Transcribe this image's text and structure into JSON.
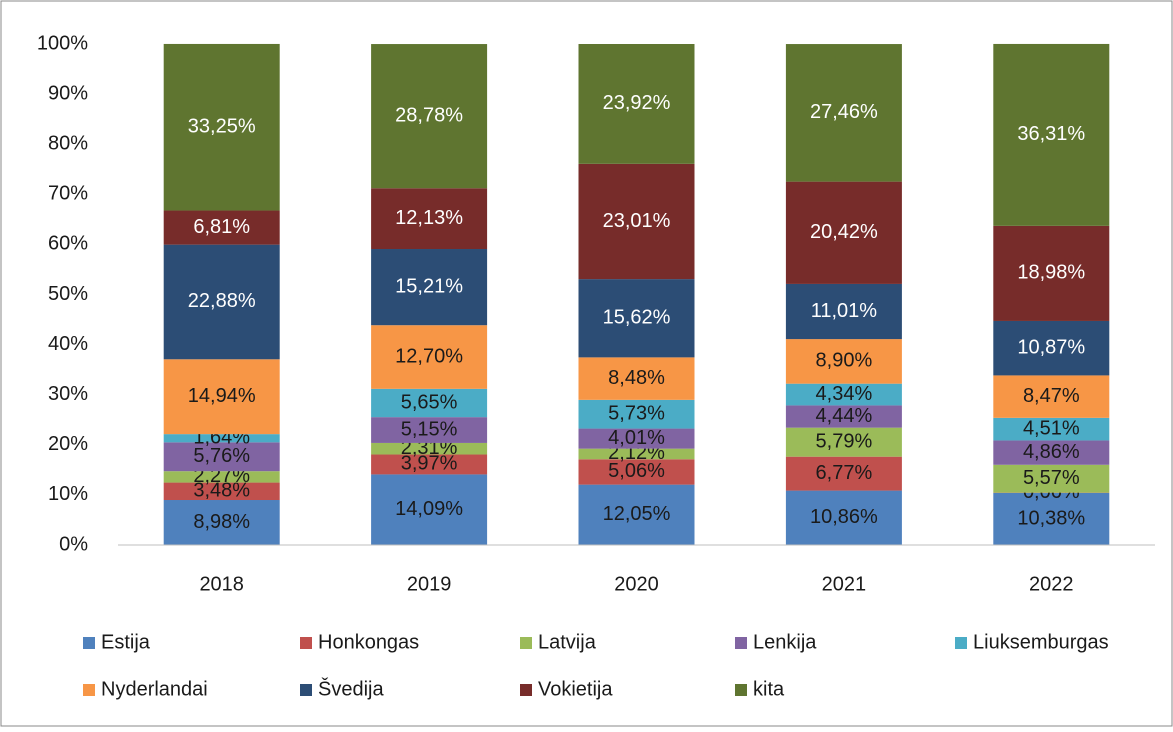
{
  "chart_data": {
    "type": "stacked_bar",
    "categories": [
      "2018",
      "2019",
      "2020",
      "2021",
      "2022"
    ],
    "series": [
      {
        "name": "Estija",
        "color": "#4f81bd",
        "values": [
          8.98,
          14.09,
          12.05,
          10.86,
          10.38
        ],
        "value_labels": [
          "8,98%",
          "14,09%",
          "12,05%",
          "10,86%",
          "10,38%"
        ]
      },
      {
        "name": "Honkongas",
        "color": "#c0504d",
        "values": [
          3.48,
          3.97,
          5.06,
          6.77,
          0.06
        ],
        "value_labels": [
          "3,48%",
          "3,97%",
          "5,06%",
          "6,77%",
          "0,06%"
        ]
      },
      {
        "name": "Latvija",
        "color": "#9bbb59",
        "values": [
          2.27,
          2.31,
          2.12,
          5.79,
          5.57
        ],
        "value_labels": [
          "2,27%",
          "2,31%",
          "2,12%",
          "5,79%",
          "5,57%"
        ]
      },
      {
        "name": "Lenkija",
        "color": "#8064a2",
        "values": [
          5.76,
          5.15,
          4.01,
          4.44,
          4.86
        ],
        "value_labels": [
          "5,76%",
          "5,15%",
          "4,01%",
          "4,44%",
          "4,86%"
        ]
      },
      {
        "name": "Liuksemburgas",
        "color": "#4bacc6",
        "values": [
          1.64,
          5.65,
          5.73,
          4.34,
          4.51
        ],
        "value_labels": [
          "1,64%",
          "5,65%",
          "5,73%",
          "4,34%",
          "4,51%"
        ]
      },
      {
        "name": "Nyderlandai",
        "color": "#f79646",
        "values": [
          14.94,
          12.7,
          8.48,
          8.9,
          8.47
        ],
        "value_labels": [
          "14,94%",
          "12,70%",
          "8,48%",
          "8,90%",
          "8,47%"
        ]
      },
      {
        "name": "Švedija",
        "color": "#2c4d75",
        "values": [
          22.88,
          15.21,
          15.62,
          11.01,
          10.87
        ],
        "value_labels": [
          "22,88%",
          "15,21%",
          "15,62%",
          "11,01%",
          "10,87%"
        ]
      },
      {
        "name": "Vokietija",
        "color": "#772c2a",
        "values": [
          6.81,
          12.13,
          23.01,
          20.42,
          18.98
        ],
        "value_labels": [
          "6,81%",
          "12,13%",
          "23,01%",
          "20,42%",
          "18,98%"
        ]
      },
      {
        "name": "kita",
        "color": "#5f7530",
        "values": [
          33.25,
          28.78,
          23.92,
          27.46,
          36.31
        ],
        "value_labels": [
          "33,25%",
          "28,78%",
          "23,92%",
          "27,46%",
          "36,31%"
        ]
      }
    ],
    "ylim": [
      0,
      100
    ],
    "yticks": [
      {
        "value": 0,
        "label": "0%"
      },
      {
        "value": 10,
        "label": "10%"
      },
      {
        "value": 20,
        "label": "20%"
      },
      {
        "value": 30,
        "label": "30%"
      },
      {
        "value": 40,
        "label": "40%"
      },
      {
        "value": 50,
        "label": "50%"
      },
      {
        "value": 60,
        "label": "60%"
      },
      {
        "value": 70,
        "label": "70%"
      },
      {
        "value": 80,
        "label": "80%"
      },
      {
        "value": 90,
        "label": "90%"
      },
      {
        "value": 100,
        "label": "100%"
      }
    ],
    "grid": false,
    "legend": "bottom"
  }
}
